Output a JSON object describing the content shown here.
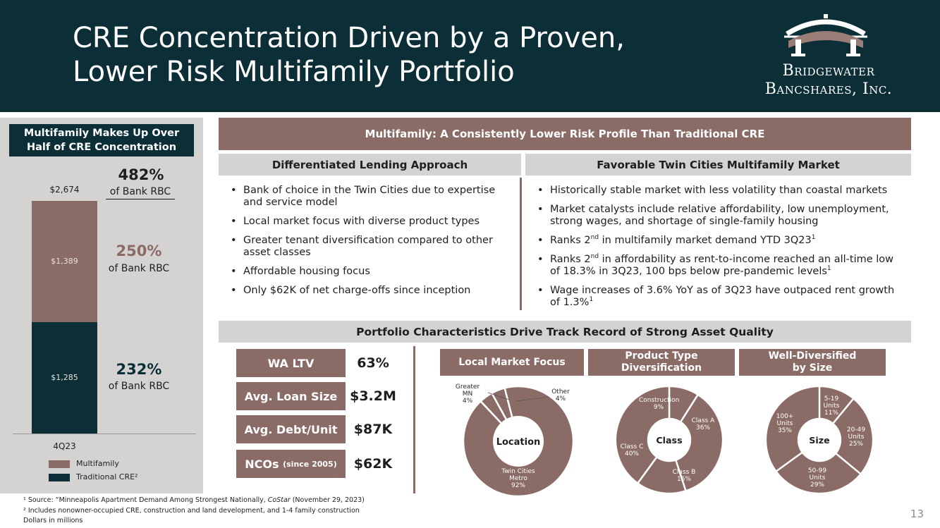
{
  "header": {
    "title_line1": "CRE Concentration Driven by a Proven,",
    "title_line2": "Lower Risk Multifamily Portfolio",
    "logo_line1": "Bridgewater",
    "logo_line2": "Bancshares, Inc."
  },
  "left_panel": {
    "title_line1": "Multifamily Makes Up Over",
    "title_line2": "Half of CRE Concentration",
    "total_pct": "482%",
    "total_sub": "of Bank RBC",
    "mf_pct": "250%",
    "mf_sub": "of Bank RBC",
    "trad_pct": "232%",
    "trad_sub": "of Bank RBC",
    "legend_multifamily": "Multifamily",
    "legend_traditional": "Traditional CRE²"
  },
  "chart_data": [
    {
      "type": "bar",
      "stacked": true,
      "categories": [
        "4Q23"
      ],
      "total_label": "$2,674",
      "series": [
        {
          "name": "Traditional CRE²",
          "values": [
            1285
          ],
          "label": "$1,285",
          "color": "#0b2e37"
        },
        {
          "name": "Multifamily",
          "values": [
            1389
          ],
          "label": "$1,389",
          "color": "#8a6b65"
        }
      ]
    },
    {
      "type": "pie",
      "title": "Local Market Focus",
      "center": "Location",
      "slices": [
        {
          "label": "Twin Cities Metro",
          "value": 92,
          "pct": "92%"
        },
        {
          "label": "Greater MN",
          "value": 4,
          "pct": "4%"
        },
        {
          "label": "Other",
          "value": 4,
          "pct": "4%"
        }
      ]
    },
    {
      "type": "pie",
      "title": "Product Type Diversification",
      "center": "Class",
      "slices": [
        {
          "label": "Construction",
          "value": 9,
          "pct": "9%"
        },
        {
          "label": "Class A",
          "value": 36,
          "pct": "36%"
        },
        {
          "label": "Class B",
          "value": 15,
          "pct": "15%"
        },
        {
          "label": "Class C",
          "value": 40,
          "pct": "40%"
        }
      ]
    },
    {
      "type": "pie",
      "title": "Well-Diversified by Size",
      "center": "Size",
      "slices": [
        {
          "label": "5-19 Units",
          "value": 11,
          "pct": "11%"
        },
        {
          "label": "20-49 Units",
          "value": 25,
          "pct": "25%"
        },
        {
          "label": "50-99 Units",
          "value": 29,
          "pct": "29%"
        },
        {
          "label": "100+ Units",
          "value": 35,
          "pct": "35%"
        }
      ]
    }
  ],
  "multifamily_banner": "Multifamily: A Consistently Lower Risk Profile Than Traditional CRE",
  "lending": {
    "heading": "Differentiated Lending Approach",
    "bullets": [
      "Bank of choice in the Twin Cities due to expertise and service model",
      "Local market focus with diverse product types",
      "Greater tenant diversification compared to other asset classes",
      "Affordable housing focus",
      "Only $62K of net charge-offs since inception"
    ]
  },
  "market": {
    "heading": "Favorable Twin Cities Multifamily Market",
    "b1": "Historically stable market with less volatility than coastal markets",
    "b2": "Market catalysts include relative affordability, low unemployment, strong wages, and shortage of single-family housing",
    "b3_pre": "Ranks 2",
    "b3_sup": "nd",
    "b3_post": " in multifamily market demand YTD 3Q23",
    "b3_note": "1",
    "b4_pre": "Ranks 2",
    "b4_sup": "nd",
    "b4_post": " in affordability as rent-to-income reached an all-time low of 18.3% in 3Q23, 100 bps below pre-pandemic levels",
    "b4_note": "1",
    "b5": "Wage increases of 3.6% YoY as of 3Q23 have outpaced rent growth of 1.3%",
    "b5_note": "1"
  },
  "portfolio_banner": "Portfolio Characteristics Drive Track Record of Strong Asset Quality",
  "metrics": [
    {
      "label": "WA LTV",
      "value": "63%"
    },
    {
      "label": "Avg. Loan Size",
      "value": "$3.2M"
    },
    {
      "label": "Avg. Debt/Unit",
      "value": "$87K"
    },
    {
      "label": "NCOs",
      "label_small": "(since 2005)",
      "value": "$62K"
    }
  ],
  "charts_heads": {
    "location": "Local Market Focus",
    "class_l1": "Product Type",
    "class_l2": "Diversification",
    "size_l1": "Well-Diversified",
    "size_l2": "by Size"
  },
  "footnotes": {
    "f1_pre": "¹ Source: “Minneapolis Apartment Demand Among Strongest Nationally, ",
    "f1_ital": "CoStar",
    "f1_post": " (November 29, 2023)",
    "f2": "² Includes nonowner-occupied CRE, construction and land development, and 1-4 family construction",
    "f3": "Dollars in millions"
  },
  "page_number": "13",
  "colors": {
    "navy": "#0b2e37",
    "mauve": "#8a6b65",
    "grey": "#d5d3d2"
  }
}
